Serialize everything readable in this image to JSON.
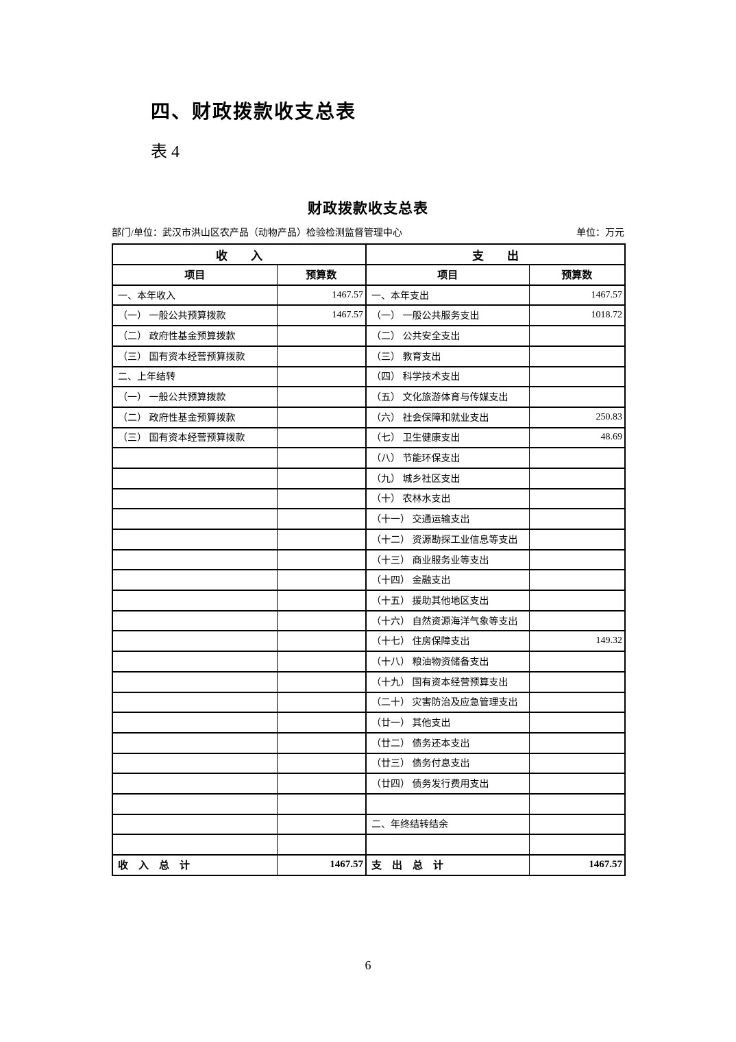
{
  "page": {
    "section_title": "四、财政拨款收支总表",
    "table_label": "表 4",
    "table_title": "财政拨款收支总表",
    "meta_left": "部门/单位：武汉市洪山区农产品（动物产品）检验检测监督管理中心",
    "meta_right": "单位：万元",
    "page_number": "6"
  },
  "table": {
    "income_header": "收　　入",
    "expense_header": "支　　出",
    "col_item": "项目",
    "col_budget": "预算数",
    "rows": [
      {
        "income_item": "一、本年收入",
        "income_value": "1467.57",
        "expense_item": "一、本年支出",
        "expense_value": "1467.57"
      },
      {
        "income_item": "（一） 一般公共预算拨款",
        "income_value": "1467.57",
        "expense_item": "（一） 一般公共服务支出",
        "expense_value": "1018.72"
      },
      {
        "income_item": "（二） 政府性基金预算拨款",
        "income_value": "",
        "expense_item": "（二） 公共安全支出",
        "expense_value": ""
      },
      {
        "income_item": "（三） 国有资本经营预算拨款",
        "income_value": "",
        "expense_item": "（三） 教育支出",
        "expense_value": ""
      },
      {
        "income_item": "二、上年结转",
        "income_value": "",
        "expense_item": "（四） 科学技术支出",
        "expense_value": ""
      },
      {
        "income_item": "（一） 一般公共预算拨款",
        "income_value": "",
        "expense_item": "（五） 文化旅游体育与传媒支出",
        "expense_value": ""
      },
      {
        "income_item": "（二） 政府性基金预算拨款",
        "income_value": "",
        "expense_item": "（六） 社会保障和就业支出",
        "expense_value": "250.83"
      },
      {
        "income_item": "（三） 国有资本经营预算拨款",
        "income_value": "",
        "expense_item": "（七） 卫生健康支出",
        "expense_value": "48.69"
      },
      {
        "income_item": "",
        "income_value": "",
        "expense_item": "（八） 节能环保支出",
        "expense_value": ""
      },
      {
        "income_item": "",
        "income_value": "",
        "expense_item": "（九） 城乡社区支出",
        "expense_value": ""
      },
      {
        "income_item": "",
        "income_value": "",
        "expense_item": "（十） 农林水支出",
        "expense_value": ""
      },
      {
        "income_item": "",
        "income_value": "",
        "expense_item": "（十一） 交通运输支出",
        "expense_value": ""
      },
      {
        "income_item": "",
        "income_value": "",
        "expense_item": "（十二） 资源勘探工业信息等支出",
        "expense_value": ""
      },
      {
        "income_item": "",
        "income_value": "",
        "expense_item": "（十三） 商业服务业等支出",
        "expense_value": ""
      },
      {
        "income_item": "",
        "income_value": "",
        "expense_item": "（十四） 金融支出",
        "expense_value": ""
      },
      {
        "income_item": "",
        "income_value": "",
        "expense_item": "（十五） 援助其他地区支出",
        "expense_value": ""
      },
      {
        "income_item": "",
        "income_value": "",
        "expense_item": "（十六） 自然资源海洋气象等支出",
        "expense_value": ""
      },
      {
        "income_item": "",
        "income_value": "",
        "expense_item": "（十七） 住房保障支出",
        "expense_value": "149.32"
      },
      {
        "income_item": "",
        "income_value": "",
        "expense_item": "（十八） 粮油物资储备支出",
        "expense_value": ""
      },
      {
        "income_item": "",
        "income_value": "",
        "expense_item": "（十九） 国有资本经营预算支出",
        "expense_value": ""
      },
      {
        "income_item": "",
        "income_value": "",
        "expense_item": "（二十） 灾害防治及应急管理支出",
        "expense_value": ""
      },
      {
        "income_item": "",
        "income_value": "",
        "expense_item": "（廿一） 其他支出",
        "expense_value": ""
      },
      {
        "income_item": "",
        "income_value": "",
        "expense_item": "（廿二） 债务还本支出",
        "expense_value": ""
      },
      {
        "income_item": "",
        "income_value": "",
        "expense_item": "（廿三） 债务付息支出",
        "expense_value": ""
      },
      {
        "income_item": "",
        "income_value": "",
        "expense_item": "（廿四） 债务发行费用支出",
        "expense_value": ""
      },
      {
        "income_item": "",
        "income_value": "",
        "expense_item": "",
        "expense_value": ""
      },
      {
        "income_item": "",
        "income_value": "",
        "expense_item": "二、年终结转结余",
        "expense_value": ""
      },
      {
        "income_item": "",
        "income_value": "",
        "expense_item": "",
        "expense_value": ""
      }
    ],
    "total": {
      "income_label": "收　入　总　计",
      "income_value": "1467.57",
      "expense_label": "支　出　总　计",
      "expense_value": "1467.57"
    }
  }
}
